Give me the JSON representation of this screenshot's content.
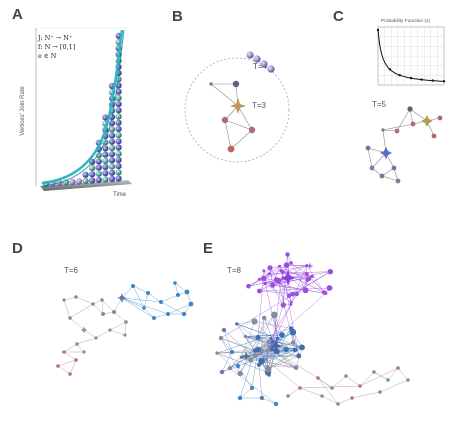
{
  "panels": {
    "A": {
      "letter": "A",
      "eq1": "J: N⁺ → N⁺",
      "eq2": "f: N → [0,1]",
      "eq3": "e ∈ N",
      "ylabel": "Vertices' Join Rate",
      "xlabel": "Time"
    },
    "B": {
      "letter": "B",
      "t_upper": "T=4",
      "t_lower": "T=3"
    },
    "C": {
      "letter": "C",
      "plot_title": "Probability Function (J)",
      "t_label": "T=5"
    },
    "D": {
      "letter": "D",
      "t_label": "T=6"
    },
    "E": {
      "letter": "E",
      "t_label": "T=8"
    }
  },
  "colors": {
    "curve": "#2bb6c3",
    "purple": "#9b4fe0",
    "blue": "#3a86c8",
    "star": "#b89a5a",
    "edge": "#9aa0b4"
  }
}
